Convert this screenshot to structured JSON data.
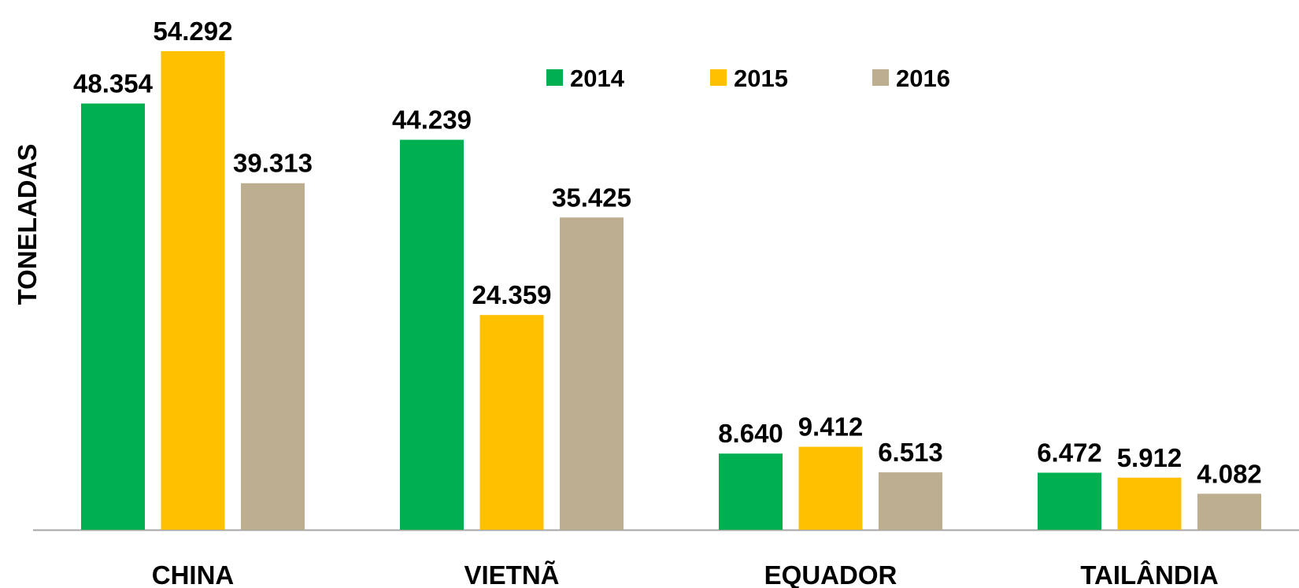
{
  "chart_data": {
    "type": "bar",
    "y_label": "TONELADAS",
    "categories": [
      "CHINA",
      "VIETNÃ",
      "EQUADOR",
      "TAILÂNDIA"
    ],
    "series": [
      {
        "name": "2014",
        "color": "#00b050",
        "values": [
          48354,
          44239,
          8640,
          6472
        ],
        "value_labels": [
          "48.354",
          "44.239",
          "8.640",
          "6.472"
        ]
      },
      {
        "name": "2015",
        "color": "#ffc000",
        "values": [
          54292,
          24359,
          9412,
          5912
        ],
        "value_labels": [
          "54.292",
          "24.359",
          "9.412",
          "5.912"
        ]
      },
      {
        "name": "2016",
        "color": "#bcae8e",
        "values": [
          39313,
          35425,
          6513,
          4082
        ],
        "value_labels": [
          "39.313",
          "35.425",
          "6.513",
          "4.082"
        ]
      }
    ],
    "legend": "top"
  }
}
